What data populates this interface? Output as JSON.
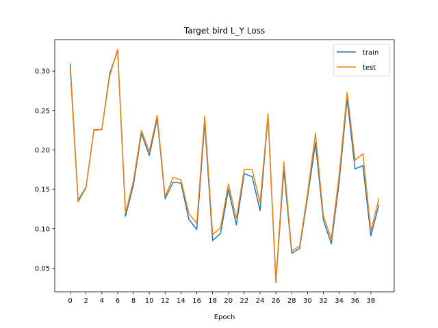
{
  "chart_data": {
    "type": "line",
    "title": "Target bird L_Y Loss",
    "xlabel": "Epoch",
    "ylabel": "",
    "xlim": [
      -1.95,
      40.95
    ],
    "ylim": [
      0.02,
      0.34
    ],
    "xticks": [
      0,
      2,
      4,
      6,
      8,
      10,
      12,
      14,
      16,
      18,
      20,
      22,
      24,
      26,
      28,
      30,
      32,
      34,
      36,
      38
    ],
    "yticks": [
      0.05,
      0.1,
      0.15,
      0.2,
      0.25,
      0.3
    ],
    "grid": false,
    "legend_position": "top-right",
    "x": [
      0,
      1,
      2,
      3,
      4,
      5,
      6,
      7,
      8,
      9,
      10,
      11,
      12,
      13,
      14,
      15,
      16,
      17,
      18,
      19,
      20,
      21,
      22,
      23,
      24,
      25,
      26,
      27,
      28,
      29,
      30,
      31,
      32,
      33,
      34,
      35,
      36,
      37,
      38,
      39
    ],
    "series": [
      {
        "name": "train",
        "color": "#1f77b4",
        "values": [
          0.309,
          0.136,
          0.153,
          0.225,
          0.226,
          0.297,
          0.326,
          0.116,
          0.156,
          0.221,
          0.193,
          0.24,
          0.138,
          0.159,
          0.158,
          0.112,
          0.099,
          0.235,
          0.085,
          0.094,
          0.15,
          0.105,
          0.17,
          0.166,
          0.123,
          0.243,
          0.032,
          0.175,
          0.069,
          0.075,
          0.14,
          0.209,
          0.111,
          0.081,
          0.16,
          0.265,
          0.176,
          0.18,
          0.091,
          0.13
        ]
      },
      {
        "name": "test",
        "color": "#ff7f0e",
        "values": [
          0.303,
          0.134,
          0.152,
          0.226,
          0.226,
          0.294,
          0.328,
          0.12,
          0.161,
          0.225,
          0.198,
          0.244,
          0.141,
          0.165,
          0.162,
          0.119,
          0.107,
          0.243,
          0.093,
          0.101,
          0.157,
          0.113,
          0.175,
          0.175,
          0.133,
          0.246,
          0.034,
          0.185,
          0.072,
          0.078,
          0.145,
          0.221,
          0.116,
          0.087,
          0.169,
          0.273,
          0.187,
          0.195,
          0.097,
          0.138
        ]
      }
    ]
  }
}
